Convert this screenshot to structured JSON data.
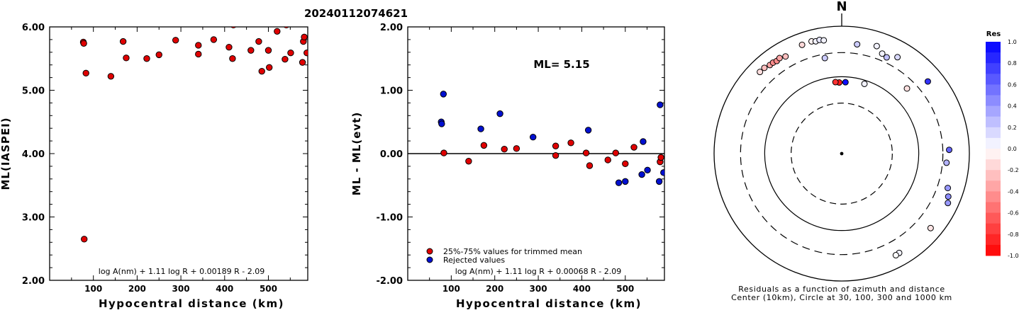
{
  "title": "20240112074621",
  "colors": {
    "trimmed": "#e00000",
    "rejected": "#0010d0",
    "res_pos": "#0000ff",
    "res_neg": "#ff0000"
  },
  "chart_data": [
    {
      "type": "scatter",
      "ylabel": "ML(IASPEI)",
      "xlabel": "Hypocentral distance (km)",
      "xlim": [
        0,
        590
      ],
      "ylim": [
        2.0,
        6.0
      ],
      "xticks": [
        100,
        200,
        300,
        400,
        500
      ],
      "yticks": [
        2.0,
        3.0,
        4.0,
        5.0,
        6.0
      ],
      "ytick_labels": [
        "2.00",
        "3.00",
        "4.00",
        "5.00",
        "6.00"
      ],
      "formula": "log A(nm) + 1.11 log R + 0.00189 R - 2.09",
      "points": [
        [
          77,
          5.76
        ],
        [
          78,
          5.74
        ],
        [
          79,
          2.65
        ],
        [
          83,
          5.27
        ],
        [
          140,
          5.22
        ],
        [
          168,
          5.77
        ],
        [
          175,
          5.51
        ],
        [
          222,
          5.5
        ],
        [
          250,
          5.56
        ],
        [
          288,
          5.79
        ],
        [
          340,
          5.71
        ],
        [
          340,
          5.57
        ],
        [
          375,
          5.8
        ],
        [
          410,
          5.68
        ],
        [
          418,
          5.5
        ],
        [
          420,
          6.03
        ],
        [
          460,
          5.63
        ],
        [
          478,
          5.77
        ],
        [
          485,
          5.3
        ],
        [
          500,
          5.63
        ],
        [
          502,
          5.36
        ],
        [
          520,
          5.93
        ],
        [
          538,
          5.49
        ],
        [
          541,
          6.03
        ],
        [
          551,
          5.59
        ],
        [
          578,
          5.44
        ],
        [
          580,
          5.77
        ],
        [
          582,
          5.84
        ],
        [
          588,
          5.59
        ]
      ]
    },
    {
      "type": "scatter",
      "ylabel": "ML - ML(evt)",
      "xlabel": "Hypocentral distance (km)",
      "xlim": [
        0,
        590
      ],
      "ylim": [
        -2.0,
        2.0
      ],
      "xticks": [
        100,
        200,
        300,
        400,
        500
      ],
      "yticks": [
        -2.0,
        -1.0,
        0.0,
        1.0,
        2.0
      ],
      "ytick_labels": [
        "-2.00",
        "-1.00",
        "0.00",
        "1.00",
        "2.00"
      ],
      "annotation": "ML= 5.15",
      "formula": "log A(nm) + 1.11 log R + 0.00068 R - 2.09",
      "legend": [
        "25%-75% values for trimmed mean",
        "Rejected values"
      ],
      "series": [
        {
          "name": "25%-75% values for trimmed mean",
          "points": [
            [
              83,
              0.01
            ],
            [
              140,
              -0.12
            ],
            [
              175,
              0.13
            ],
            [
              222,
              0.07
            ],
            [
              250,
              0.08
            ],
            [
              340,
              0.12
            ],
            [
              340,
              -0.03
            ],
            [
              375,
              0.17
            ],
            [
              410,
              0.01
            ],
            [
              418,
              -0.19
            ],
            [
              460,
              -0.1
            ],
            [
              478,
              0.01
            ],
            [
              500,
              -0.16
            ],
            [
              520,
              0.1
            ],
            [
              580,
              -0.13
            ],
            [
              582,
              -0.06
            ]
          ]
        },
        {
          "name": "Rejected values",
          "points": [
            [
              77,
              0.5
            ],
            [
              78,
              0.47
            ],
            [
              82,
              0.94
            ],
            [
              168,
              0.39
            ],
            [
              212,
              0.63
            ],
            [
              288,
              0.26
            ],
            [
              415,
              0.37
            ],
            [
              485,
              -0.46
            ],
            [
              500,
              -0.44
            ],
            [
              538,
              -0.33
            ],
            [
              541,
              0.19
            ],
            [
              551,
              -0.26
            ],
            [
              578,
              -0.44
            ],
            [
              580,
              0.77
            ],
            [
              588,
              -0.3
            ]
          ]
        }
      ]
    },
    {
      "type": "scatter",
      "subtype": "polar-residuals",
      "north_label": "N",
      "caption": [
        "Residuals as a function of azimuth and distance",
        "Center (10km), Circle at 30, 100, 300 and 1000 km"
      ],
      "rings_km": [
        10,
        30,
        100,
        300,
        1000
      ],
      "colorbar": {
        "title": "Res",
        "ticks": [
          "1.0",
          "0.8",
          "0.6",
          "0.4",
          "0.2",
          "0.0",
          "-0.2",
          "-0.4",
          "-0.6",
          "-0.8",
          "-1.0"
        ]
      },
      "stations": [
        {
          "azimuth": 315,
          "distance_km": 580,
          "residual": -0.13
        },
        {
          "azimuth": 318,
          "distance_km": 578,
          "residual": -0.25
        },
        {
          "azimuth": 321,
          "distance_km": 541,
          "residual": -0.35
        },
        {
          "azimuth": 323,
          "distance_km": 540,
          "residual": -0.45
        },
        {
          "azimuth": 325,
          "distance_km": 520,
          "residual": -0.45
        },
        {
          "azimuth": 327,
          "distance_km": 540,
          "residual": -0.35
        },
        {
          "azimuth": 330,
          "distance_km": 500,
          "residual": -0.25
        },
        {
          "azimuth": 340,
          "distance_km": 588,
          "residual": -0.15
        },
        {
          "azimuth": 345,
          "distance_km": 600,
          "residual": -0.05
        },
        {
          "azimuth": 347,
          "distance_km": 575,
          "residual": 0.05
        },
        {
          "azimuth": 349,
          "distance_km": 590,
          "residual": 0.1
        },
        {
          "azimuth": 351,
          "distance_km": 560,
          "residual": 0.05
        },
        {
          "azimuth": 8,
          "distance_km": 460,
          "residual": 0.2
        },
        {
          "azimuth": 25,
          "distance_km": 380,
          "residual": 0.25
        },
        {
          "azimuth": 3,
          "distance_km": 78,
          "residual": 0.94
        },
        {
          "azimuth": 358,
          "distance_km": 77,
          "residual": -0.9
        },
        {
          "azimuth": 355,
          "distance_km": 79,
          "residual": -0.8
        },
        {
          "azimuth": 18,
          "distance_km": 85,
          "residual": 0.05
        },
        {
          "azimuth": 350,
          "distance_km": 250,
          "residual": 0.2
        },
        {
          "azimuth": 18,
          "distance_km": 520,
          "residual": 0.05
        },
        {
          "azimuth": 22,
          "distance_km": 410,
          "residual": 0.05
        },
        {
          "azimuth": 30,
          "distance_km": 480,
          "residual": 0.15
        },
        {
          "azimuth": 45,
          "distance_km": 200,
          "residual": -0.12
        },
        {
          "azimuth": 50,
          "distance_km": 500,
          "residual": 0.8
        },
        {
          "azimuth": 88,
          "distance_km": 400,
          "residual": 0.6
        },
        {
          "azimuth": 95,
          "distance_km": 360,
          "residual": 0.3
        },
        {
          "azimuth": 108,
          "distance_km": 480,
          "residual": 0.4
        },
        {
          "azimuth": 112,
          "distance_km": 560,
          "residual": 0.45
        },
        {
          "azimuth": 115,
          "distance_km": 620,
          "residual": 0.4
        },
        {
          "azimuth": 130,
          "distance_km": 590,
          "residual": -0.1
        },
        {
          "azimuth": 150,
          "distance_km": 560,
          "residual": 0.05
        },
        {
          "azimuth": 152,
          "distance_km": 570,
          "residual": 0.0
        }
      ]
    }
  ]
}
